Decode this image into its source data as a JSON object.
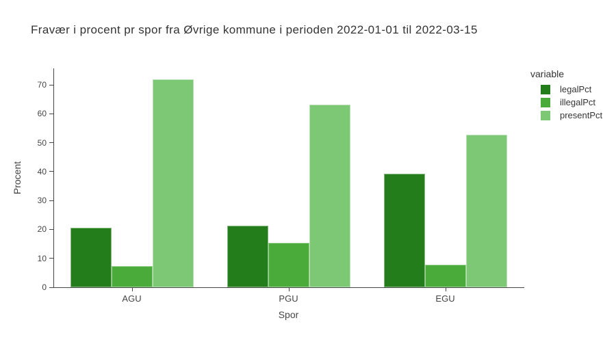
{
  "title": "Fravær i procent pr spor fra Øvrige kommune i perioden 2022-01-01 til 2022-03-15",
  "chart_data": {
    "type": "bar",
    "mode": "grouped",
    "title": "Fravær i procent pr spor fra Øvrige kommune i perioden 2022-01-01 til 2022-03-15",
    "categories": [
      "AGU",
      "PGU",
      "EGU"
    ],
    "series": [
      {
        "name": "legalPct",
        "color": "#237d1a",
        "values": [
          20.5,
          21.3,
          39.3
        ]
      },
      {
        "name": "illegalPct",
        "color": "#4aab3a",
        "values": [
          7.3,
          15.3,
          7.8
        ]
      },
      {
        "name": "presentPct",
        "color": "#7dc874",
        "values": [
          71.9,
          63.1,
          52.7
        ]
      }
    ],
    "xlabel": "Spor",
    "ylabel": "Procent",
    "ylim": [
      0,
      75.7
    ],
    "yticks": [
      0,
      10,
      20,
      30,
      40,
      50,
      60,
      70
    ],
    "legend_title": "variable",
    "legend_position": "right",
    "grid": false,
    "background": "#ffffff",
    "axis_color": "#444444"
  }
}
